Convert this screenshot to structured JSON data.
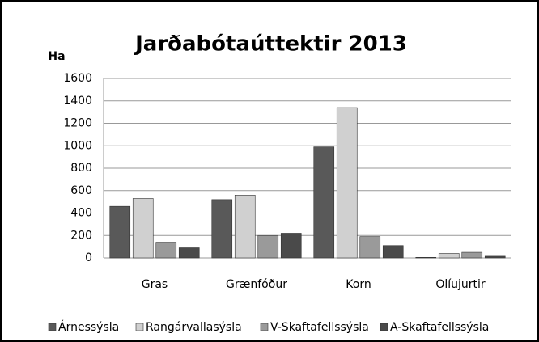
{
  "chart_data": {
    "type": "bar",
    "title": "Jarðabótaúttektir 2013",
    "y_label": "Ha",
    "categories": [
      "Gras",
      "Grænfóður",
      "Korn",
      "Olíujurtir"
    ],
    "series": [
      {
        "name": "Árnessýsla",
        "color": "#595959",
        "values": [
          460,
          520,
          990,
          5
        ]
      },
      {
        "name": "Rangárvallasýsla",
        "color": "#d0d0d0",
        "values": [
          530,
          560,
          1340,
          40
        ]
      },
      {
        "name": "V-Skaftafellssýsla",
        "color": "#9a9a9a",
        "values": [
          140,
          200,
          190,
          50
        ]
      },
      {
        "name": "A-Skaftafellssýsla",
        "color": "#4a4a4a",
        "values": [
          90,
          220,
          110,
          15
        ]
      }
    ],
    "ylim": [
      0,
      1600
    ],
    "yticks": [
      0,
      200,
      400,
      600,
      800,
      1000,
      1200,
      1400,
      1600
    ],
    "grid": true,
    "legend": "bottom"
  }
}
